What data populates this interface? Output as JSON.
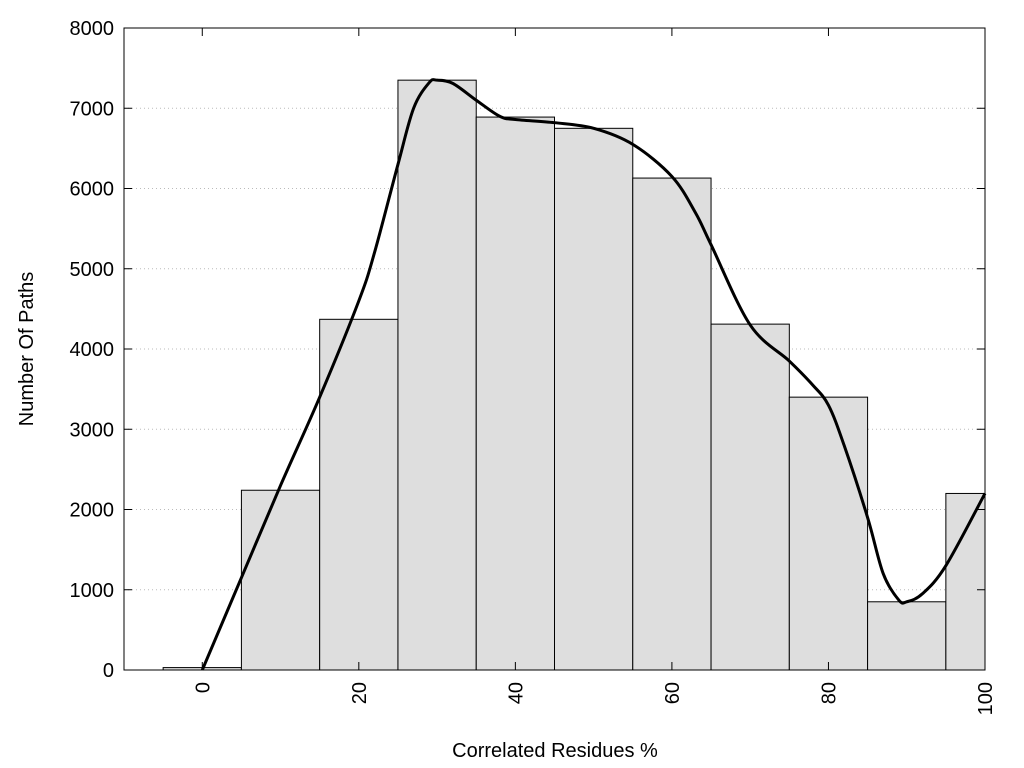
{
  "chart_data": {
    "type": "bar",
    "bar_color": "#dedede",
    "line_color": "#000000",
    "xlabel": "Correlated Residues %",
    "ylabel": "Number Of Paths",
    "xlim": [
      -10,
      100
    ],
    "ylim": [
      0,
      8000
    ],
    "grid": "horizontal dotted",
    "bin_width": 10,
    "bins": [
      {
        "center": 0,
        "value": 30
      },
      {
        "center": 10,
        "value": 2240
      },
      {
        "center": 20,
        "value": 4370
      },
      {
        "center": 30,
        "value": 7350
      },
      {
        "center": 40,
        "value": 6890
      },
      {
        "center": 50,
        "value": 6750
      },
      {
        "center": 60,
        "value": 6130
      },
      {
        "center": 70,
        "value": 4310
      },
      {
        "center": 80,
        "value": 3400
      },
      {
        "center": 90,
        "value": 850
      },
      {
        "center": 100,
        "value": 2200
      }
    ],
    "smooth_curve": {
      "x": [
        0,
        5,
        10,
        15,
        20,
        22,
        25,
        27,
        29,
        30,
        32,
        35,
        38,
        40,
        45,
        50,
        55,
        60,
        63,
        65,
        70,
        75,
        78,
        80,
        82,
        85,
        87,
        89,
        90,
        92,
        95,
        100
      ],
      "y": [
        0,
        1150,
        2300,
        3400,
        4600,
        5200,
        6300,
        7000,
        7320,
        7350,
        7310,
        7100,
        6900,
        6860,
        6820,
        6750,
        6550,
        6150,
        5700,
        5300,
        4300,
        3850,
        3550,
        3300,
        2800,
        1900,
        1200,
        870,
        850,
        950,
        1300,
        2200
      ]
    },
    "x_ticks": [
      "0",
      "20",
      "40",
      "60",
      "80",
      "100"
    ],
    "x_tick_values": [
      0,
      20,
      40,
      60,
      80,
      100
    ],
    "y_ticks": [
      "0",
      "1000",
      "2000",
      "3000",
      "4000",
      "5000",
      "6000",
      "7000",
      "8000"
    ],
    "y_tick_values": [
      0,
      1000,
      2000,
      3000,
      4000,
      5000,
      6000,
      7000,
      8000
    ]
  }
}
